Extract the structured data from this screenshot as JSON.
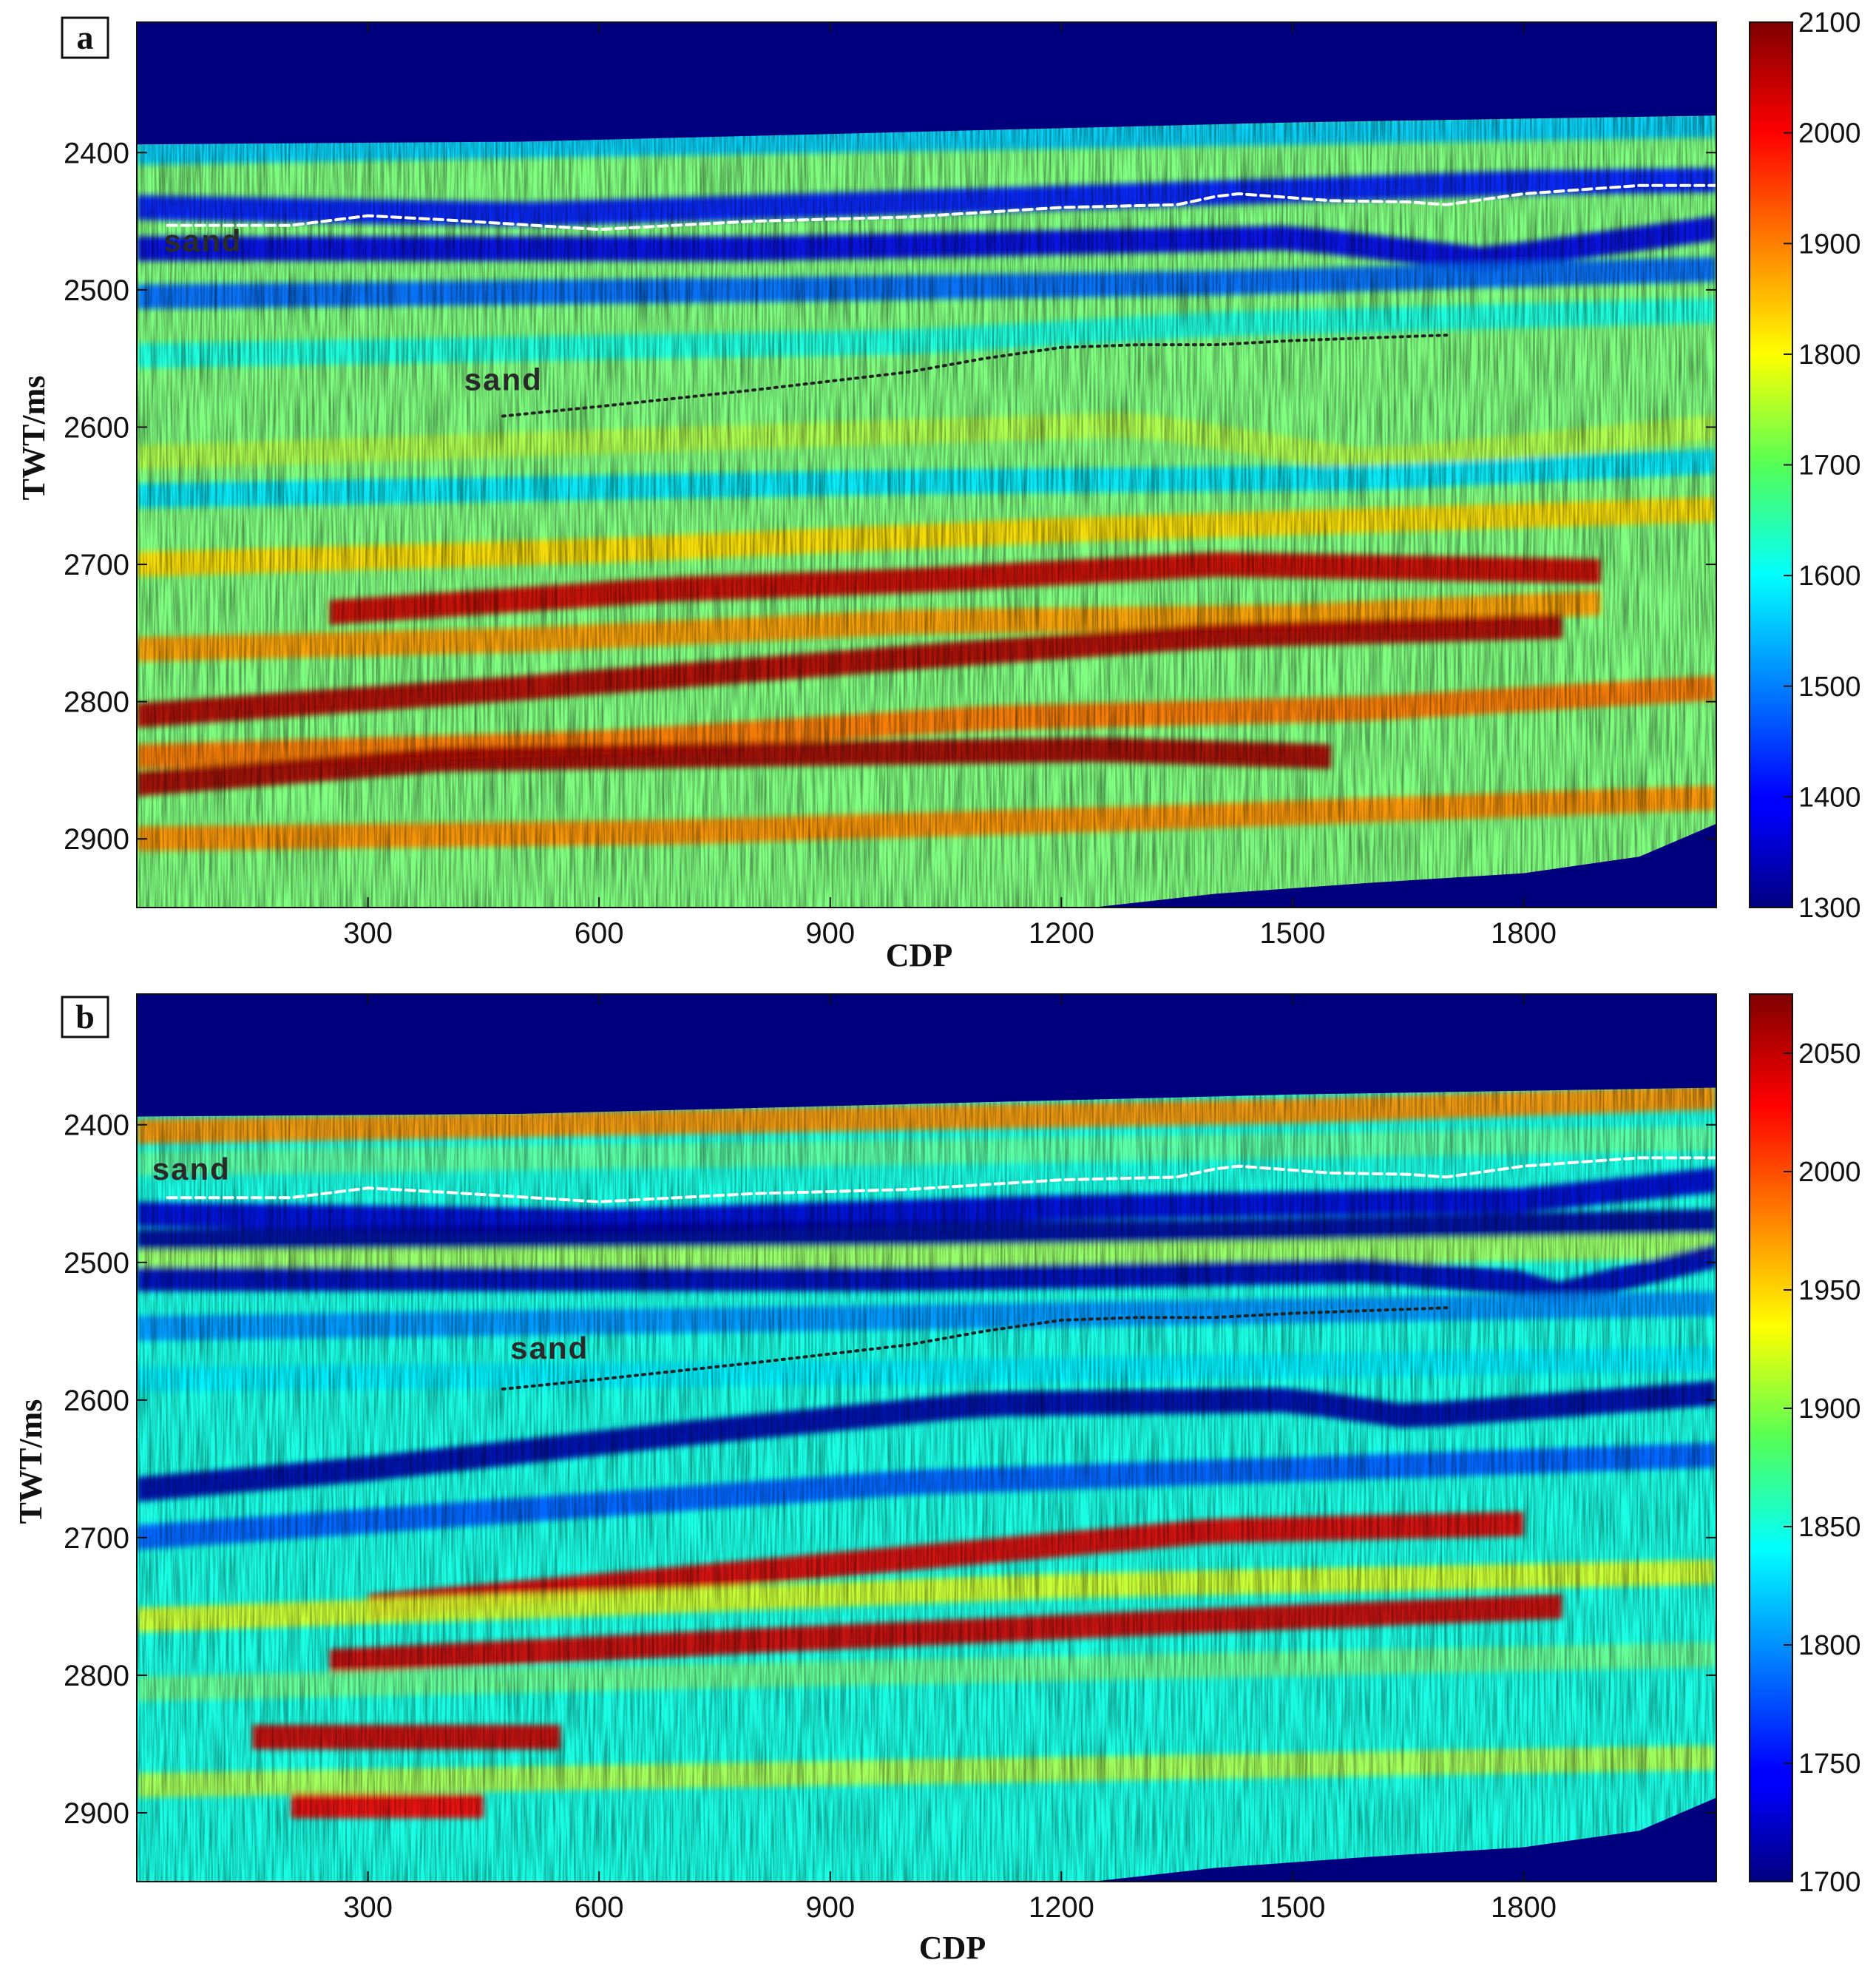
{
  "chart_data": [
    {
      "type": "heatmap",
      "panel_label": "a",
      "xlabel": "CDP",
      "ylabel": "TWT/ms",
      "xlim": [
        0,
        2050
      ],
      "ylim": [
        2950,
        2305
      ],
      "x_ticks": [
        300,
        600,
        900,
        1200,
        1500,
        1800
      ],
      "y_ticks": [
        2400,
        2500,
        2600,
        2700,
        2800,
        2900
      ],
      "colorbar": {
        "min": 1300,
        "max": 2100,
        "ticks": [
          1300,
          1400,
          1500,
          1600,
          1700,
          1800,
          1900,
          2000,
          2100
        ],
        "colormap": "jet"
      },
      "top_boundary": [
        [
          0,
          2394
        ],
        [
          500,
          2392
        ],
        [
          1000,
          2385
        ],
        [
          1500,
          2378
        ],
        [
          2050,
          2373
        ]
      ],
      "bottom_boundary": [
        [
          0,
          2950
        ],
        [
          1240,
          2950
        ],
        [
          1400,
          2940
        ],
        [
          1600,
          2932
        ],
        [
          1800,
          2925
        ],
        [
          1950,
          2913
        ],
        [
          2050,
          2889
        ]
      ],
      "layers": [
        {
          "v": 1560,
          "p": [
            [
              0,
              2400
            ],
            [
              2050,
              2380
            ]
          ]
        },
        {
          "v": 1420,
          "p": [
            [
              0,
              2440
            ],
            [
              500,
              2445
            ],
            [
              1200,
              2433
            ],
            [
              1800,
              2422
            ],
            [
              2050,
              2420
            ]
          ]
        },
        {
          "v": 1380,
          "p": [
            [
              0,
              2470
            ],
            [
              800,
              2470
            ],
            [
              1500,
              2462
            ],
            [
              1750,
              2478
            ],
            [
              2050,
              2455
            ]
          ]
        },
        {
          "v": 1480,
          "p": [
            [
              0,
              2505
            ],
            [
              800,
              2500
            ],
            [
              1400,
              2495
            ],
            [
              2050,
              2485
            ]
          ]
        },
        {
          "v": 1620,
          "p": [
            [
              0,
              2548
            ],
            [
              1000,
              2538
            ],
            [
              1400,
              2525
            ],
            [
              2050,
              2515
            ]
          ]
        },
        {
          "v": 1700,
          "p": [
            [
              0,
              2575
            ],
            [
              1000,
              2560
            ],
            [
              1550,
              2582
            ],
            [
              1650,
              2610
            ],
            [
              2050,
              2545
            ]
          ]
        },
        {
          "v": 1740,
          "p": [
            [
              0,
              2622
            ],
            [
              800,
              2607
            ],
            [
              1300,
              2598
            ],
            [
              1600,
              2625
            ],
            [
              2050,
              2600
            ]
          ]
        },
        {
          "v": 1580,
          "p": [
            [
              0,
              2650
            ],
            [
              1000,
              2640
            ],
            [
              1600,
              2637
            ],
            [
              2050,
              2625
            ]
          ]
        },
        {
          "v": 1830,
          "p": [
            [
              0,
              2700
            ],
            [
              600,
              2690
            ],
            [
              1200,
              2675
            ],
            [
              2050,
              2660
            ]
          ]
        },
        {
          "v": 2040,
          "p": [
            [
              250,
              2735
            ],
            [
              700,
              2718
            ],
            [
              1000,
              2712
            ],
            [
              1400,
              2700
            ],
            [
              1900,
              2705
            ]
          ]
        },
        {
          "v": 1880,
          "p": [
            [
              0,
              2762
            ],
            [
              500,
              2755
            ],
            [
              1000,
              2742
            ],
            [
              1500,
              2738
            ],
            [
              1900,
              2728
            ]
          ]
        },
        {
          "v": 2060,
          "p": [
            [
              0,
              2810
            ],
            [
              500,
              2790
            ],
            [
              1000,
              2768
            ],
            [
              1400,
              2752
            ],
            [
              1850,
              2745
            ]
          ]
        },
        {
          "v": 1910,
          "p": [
            [
              0,
              2840
            ],
            [
              600,
              2830
            ],
            [
              1100,
              2812
            ],
            [
              1600,
              2805
            ],
            [
              2050,
              2790
            ]
          ]
        },
        {
          "v": 2070,
          "p": [
            [
              0,
              2860
            ],
            [
              400,
              2842
            ],
            [
              850,
              2838
            ],
            [
              1250,
              2835
            ],
            [
              1550,
              2840
            ]
          ]
        },
        {
          "v": 1890,
          "p": [
            [
              0,
              2900
            ],
            [
              700,
              2895
            ],
            [
              1300,
              2885
            ],
            [
              2050,
              2870
            ]
          ]
        }
      ],
      "interpretations": [
        {
          "label": "sand",
          "style": "dashed",
          "color": "#ffffff",
          "label_at": [
            35,
            2472
          ],
          "points": [
            [
              40,
              2453
            ],
            [
              200,
              2453
            ],
            [
              300,
              2446
            ],
            [
              400,
              2449
            ],
            [
              600,
              2456
            ],
            [
              800,
              2450
            ],
            [
              1000,
              2447
            ],
            [
              1200,
              2440
            ],
            [
              1350,
              2438
            ],
            [
              1400,
              2432
            ],
            [
              1430,
              2430
            ],
            [
              1550,
              2435
            ],
            [
              1650,
              2436
            ],
            [
              1700,
              2438
            ],
            [
              1800,
              2430
            ],
            [
              1950,
              2424
            ],
            [
              2050,
              2424
            ]
          ]
        },
        {
          "label": "sand",
          "style": "dotted",
          "color": "#222222",
          "label_at": [
            425,
            2573
          ],
          "points": [
            [
              475,
              2592
            ],
            [
              600,
              2585
            ],
            [
              800,
              2573
            ],
            [
              1000,
              2560
            ],
            [
              1100,
              2550
            ],
            [
              1200,
              2542
            ],
            [
              1300,
              2540
            ],
            [
              1400,
              2540
            ],
            [
              1500,
              2537
            ],
            [
              1600,
              2535
            ],
            [
              1700,
              2533
            ]
          ]
        }
      ]
    },
    {
      "type": "heatmap",
      "panel_label": "b",
      "xlabel": "CDP",
      "ylabel": "TWT/ms",
      "xlim": [
        0,
        2050
      ],
      "ylim": [
        2950,
        2305
      ],
      "x_ticks": [
        300,
        600,
        900,
        1200,
        1500,
        1800
      ],
      "y_ticks": [
        2400,
        2500,
        2600,
        2700,
        2800,
        2900
      ],
      "colorbar": {
        "min": 1700,
        "max": 2075,
        "ticks": [
          1700,
          1750,
          1800,
          1850,
          1900,
          1950,
          2000,
          2050
        ],
        "colormap": "jet"
      },
      "top_boundary": [
        [
          0,
          2394
        ],
        [
          500,
          2392
        ],
        [
          1000,
          2385
        ],
        [
          1500,
          2378
        ],
        [
          2050,
          2373
        ]
      ],
      "bottom_boundary": [
        [
          0,
          2950
        ],
        [
          1240,
          2950
        ],
        [
          1400,
          2940
        ],
        [
          1600,
          2932
        ],
        [
          1800,
          2925
        ],
        [
          1950,
          2913
        ],
        [
          2050,
          2889
        ]
      ],
      "layers": [
        {
          "v": 1975,
          "p": [
            [
              0,
              2405
            ],
            [
              500,
              2400
            ],
            [
              1500,
              2390
            ],
            [
              2050,
              2380
            ]
          ]
        },
        {
          "v": 1875,
          "p": [
            [
              0,
              2428
            ],
            [
              1000,
              2420
            ],
            [
              2050,
              2410
            ]
          ]
        },
        {
          "v": 1730,
          "p": [
            [
              0,
              2465
            ],
            [
              600,
              2470
            ],
            [
              1200,
              2460
            ],
            [
              1800,
              2455
            ],
            [
              2050,
              2440
            ]
          ]
        },
        {
          "v": 1710,
          "p": [
            [
              0,
              2485
            ],
            [
              800,
              2480
            ],
            [
              1400,
              2478
            ],
            [
              2050,
              2470
            ]
          ]
        },
        {
          "v": 1900,
          "p": [
            [
              0,
              2500
            ],
            [
              1000,
              2497
            ],
            [
              2050,
              2488
            ]
          ]
        },
        {
          "v": 1720,
          "p": [
            [
              0,
              2512
            ],
            [
              1000,
              2512
            ],
            [
              1600,
              2506
            ],
            [
              1800,
              2515
            ],
            [
              1830,
              2525
            ],
            [
              2050,
              2495
            ]
          ]
        },
        {
          "v": 1800,
          "p": [
            [
              0,
              2548
            ],
            [
              1000,
              2540
            ],
            [
              2050,
              2530
            ]
          ]
        },
        {
          "v": 1835,
          "p": [
            [
              0,
              2585
            ],
            [
              1000,
              2580
            ],
            [
              2050,
              2570
            ]
          ]
        },
        {
          "v": 1715,
          "p": [
            [
              0,
              2665
            ],
            [
              300,
              2650
            ],
            [
              700,
              2625
            ],
            [
              1100,
              2603
            ],
            [
              1500,
              2600
            ],
            [
              1650,
              2612
            ],
            [
              2050,
              2595
            ]
          ]
        },
        {
          "v": 1780,
          "p": [
            [
              0,
              2700
            ],
            [
              500,
              2680
            ],
            [
              1000,
              2660
            ],
            [
              2050,
              2640
            ]
          ]
        },
        {
          "v": 2040,
          "p": [
            [
              300,
              2750
            ],
            [
              900,
              2720
            ],
            [
              1400,
              2695
            ],
            [
              1800,
              2690
            ]
          ]
        },
        {
          "v": 1920,
          "p": [
            [
              0,
              2760
            ],
            [
              600,
              2748
            ],
            [
              1200,
              2735
            ],
            [
              2050,
              2725
            ]
          ]
        },
        {
          "v": 2045,
          "p": [
            [
              250,
              2790
            ],
            [
              800,
              2775
            ],
            [
              1400,
              2760
            ],
            [
              1850,
              2750
            ]
          ]
        },
        {
          "v": 1880,
          "p": [
            [
              0,
              2810
            ],
            [
              800,
              2800
            ],
            [
              2050,
              2785
            ]
          ]
        },
        {
          "v": 2045,
          "p": [
            [
              150,
              2845
            ],
            [
              550,
              2845
            ]
          ]
        },
        {
          "v": 1905,
          "p": [
            [
              0,
              2880
            ],
            [
              2050,
              2860
            ]
          ]
        },
        {
          "v": 2030,
          "p": [
            [
              200,
              2895
            ],
            [
              450,
              2895
            ]
          ]
        }
      ],
      "interpretations": [
        {
          "label": "sand",
          "style": "dashed",
          "color": "#ffffff",
          "label_at": [
            20,
            2440
          ],
          "points": [
            [
              40,
              2453
            ],
            [
              200,
              2453
            ],
            [
              300,
              2446
            ],
            [
              400,
              2449
            ],
            [
              600,
              2456
            ],
            [
              800,
              2450
            ],
            [
              1000,
              2447
            ],
            [
              1200,
              2440
            ],
            [
              1350,
              2438
            ],
            [
              1400,
              2432
            ],
            [
              1430,
              2430
            ],
            [
              1550,
              2435
            ],
            [
              1650,
              2436
            ],
            [
              1700,
              2438
            ],
            [
              1800,
              2430
            ],
            [
              1950,
              2424
            ],
            [
              2050,
              2424
            ]
          ]
        },
        {
          "label": "sand",
          "style": "dotted",
          "color": "#222222",
          "label_at": [
            485,
            2570
          ],
          "points": [
            [
              475,
              2592
            ],
            [
              600,
              2585
            ],
            [
              800,
              2573
            ],
            [
              1000,
              2560
            ],
            [
              1100,
              2550
            ],
            [
              1200,
              2542
            ],
            [
              1300,
              2540
            ],
            [
              1400,
              2540
            ],
            [
              1500,
              2537
            ],
            [
              1600,
              2535
            ],
            [
              1700,
              2533
            ]
          ]
        }
      ]
    }
  ]
}
